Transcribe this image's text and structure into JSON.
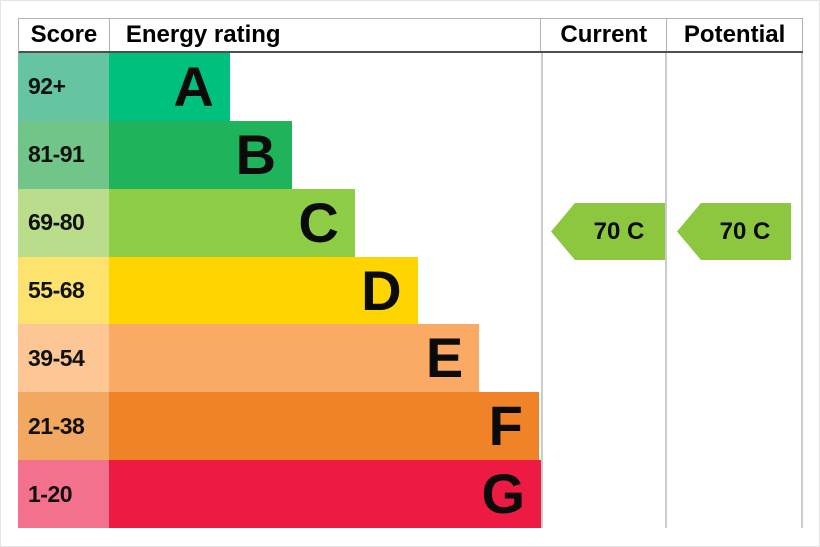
{
  "header": {
    "score": "Score",
    "energy_rating": "Energy rating",
    "current": "Current",
    "potential": "Potential"
  },
  "chart_data": {
    "type": "bar",
    "chart": "epc-energy-efficiency-rating",
    "orientation": "horizontal",
    "columns": [
      "Score",
      "Energy rating",
      "Current",
      "Potential"
    ],
    "bands": [
      {
        "letter": "A",
        "score_range": "92+",
        "color": "#00c07d",
        "tint": "#66c5a1",
        "width_pct": 23.1
      },
      {
        "letter": "B",
        "score_range": "81-91",
        "color": "#1fb35b",
        "tint": "#71c589",
        "width_pct": 35.0
      },
      {
        "letter": "C",
        "score_range": "69-80",
        "color": "#8dce46",
        "tint": "#b9dd8a",
        "width_pct": 47.0
      },
      {
        "letter": "D",
        "score_range": "55-68",
        "color": "#fed500",
        "tint": "#fde26d",
        "width_pct": 59.0
      },
      {
        "letter": "E",
        "score_range": "39-54",
        "color": "#fbaa65",
        "tint": "#fcc795",
        "width_pct": 70.8
      },
      {
        "letter": "F",
        "score_range": "21-38",
        "color": "#f08228",
        "tint": "#f3a862",
        "width_pct": 82.2
      },
      {
        "letter": "G",
        "score_range": "1-20",
        "color": "#ed1a43",
        "tint": "#f3718c",
        "width_pct": 94.0
      }
    ],
    "current": {
      "label": "70 C",
      "value": 70,
      "band": "C",
      "arrow_color": "#8dc63f"
    },
    "potential": {
      "label": "70 C",
      "value": 70,
      "band": "C",
      "arrow_color": "#8dc63f"
    }
  }
}
